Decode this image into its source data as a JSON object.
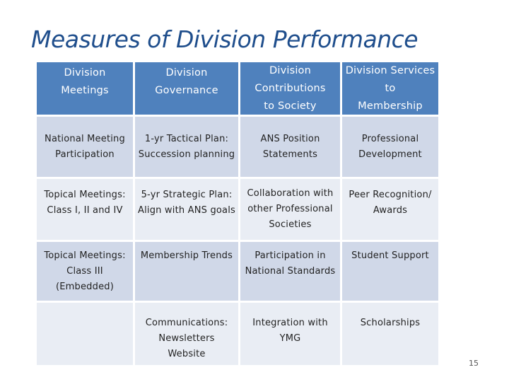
{
  "slide": {
    "title": "Measures of Division Performance",
    "page_number": "15"
  },
  "table": {
    "headers": [
      "Division\nMeetings",
      "Division\nGovernance",
      "Division\nContributions\nto Society",
      "Division Services\nto\nMembership"
    ],
    "rows": [
      [
        "National Meeting\nParticipation",
        "1-yr Tactical Plan:\nSuccession planning",
        "ANS Position\nStatements",
        "Professional\nDevelopment"
      ],
      [
        "Topical Meetings:\nClass I, II and IV",
        "5-yr Strategic Plan:\nAlign with ANS goals",
        "Collaboration with\nother Professional\nSocieties",
        "Peer Recognition/\nAwards"
      ],
      [
        "Topical Meetings:\nClass III\n(Embedded)",
        "Membership Trends",
        "Participation in\nNational Standards",
        "Student Support"
      ],
      [
        "",
        "Communications:\nNewsletters\nWebsite",
        "Integration with\nYMG",
        "Scholarships"
      ]
    ]
  },
  "colors": {
    "header_bg": "#4f81bd",
    "row_odd_bg": "#d0d8e8",
    "row_even_bg": "#e9edf4",
    "title": "#1f4e8c"
  }
}
